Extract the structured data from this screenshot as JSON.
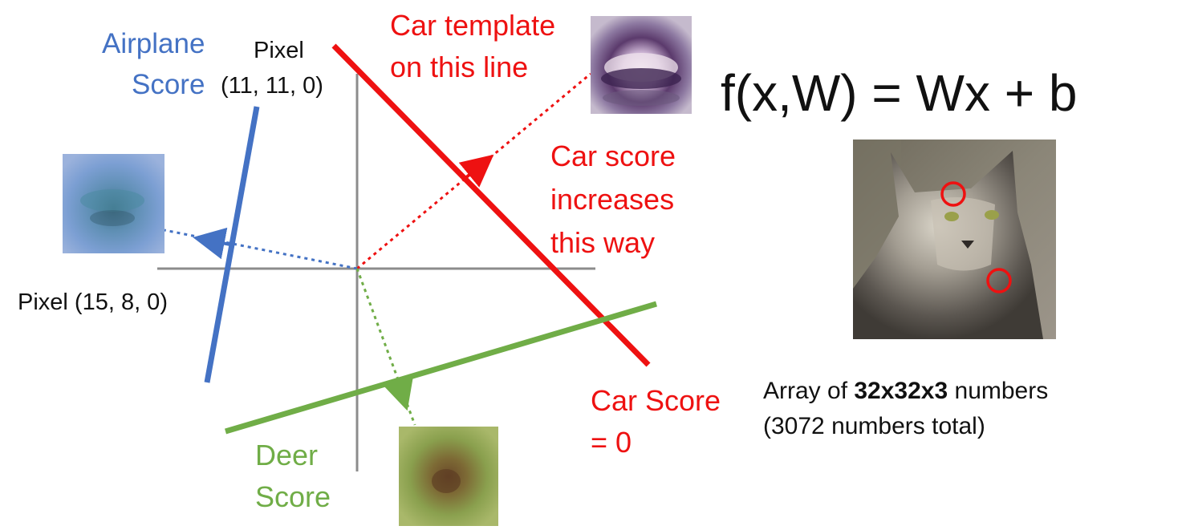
{
  "labels": {
    "airplane_score": [
      "Airplane",
      "Score"
    ],
    "pixel_top_word": "Pixel",
    "pixel_top_coord": "(11, 11, 0)",
    "pixel_left": "Pixel (15, 8, 0)",
    "car_template": [
      "Car template",
      "on this line"
    ],
    "car_score_increases": [
      "Car score",
      "increases",
      "this way"
    ],
    "car_score_zero": [
      "Car Score",
      "= 0"
    ],
    "deer_score": [
      "Deer",
      "Score"
    ]
  },
  "formula": "f(x,W) = Wx + b",
  "array_caption": {
    "line1_prefix": "Array of ",
    "line1_bold": "32x32x3",
    "line1_suffix": " numbers",
    "line2": "(3072 numbers total)"
  },
  "images": {
    "airplane_template": "blurry blue airplane template",
    "car_template": "blurry purple car template",
    "deer_template": "blurry green-brown deer template",
    "cat_photo": "tabby cat photo with two red circles"
  },
  "colors": {
    "red": "#ee1111",
    "blue": "#4472c4",
    "green": "#70ad47",
    "axis": "#8c8c8c"
  }
}
